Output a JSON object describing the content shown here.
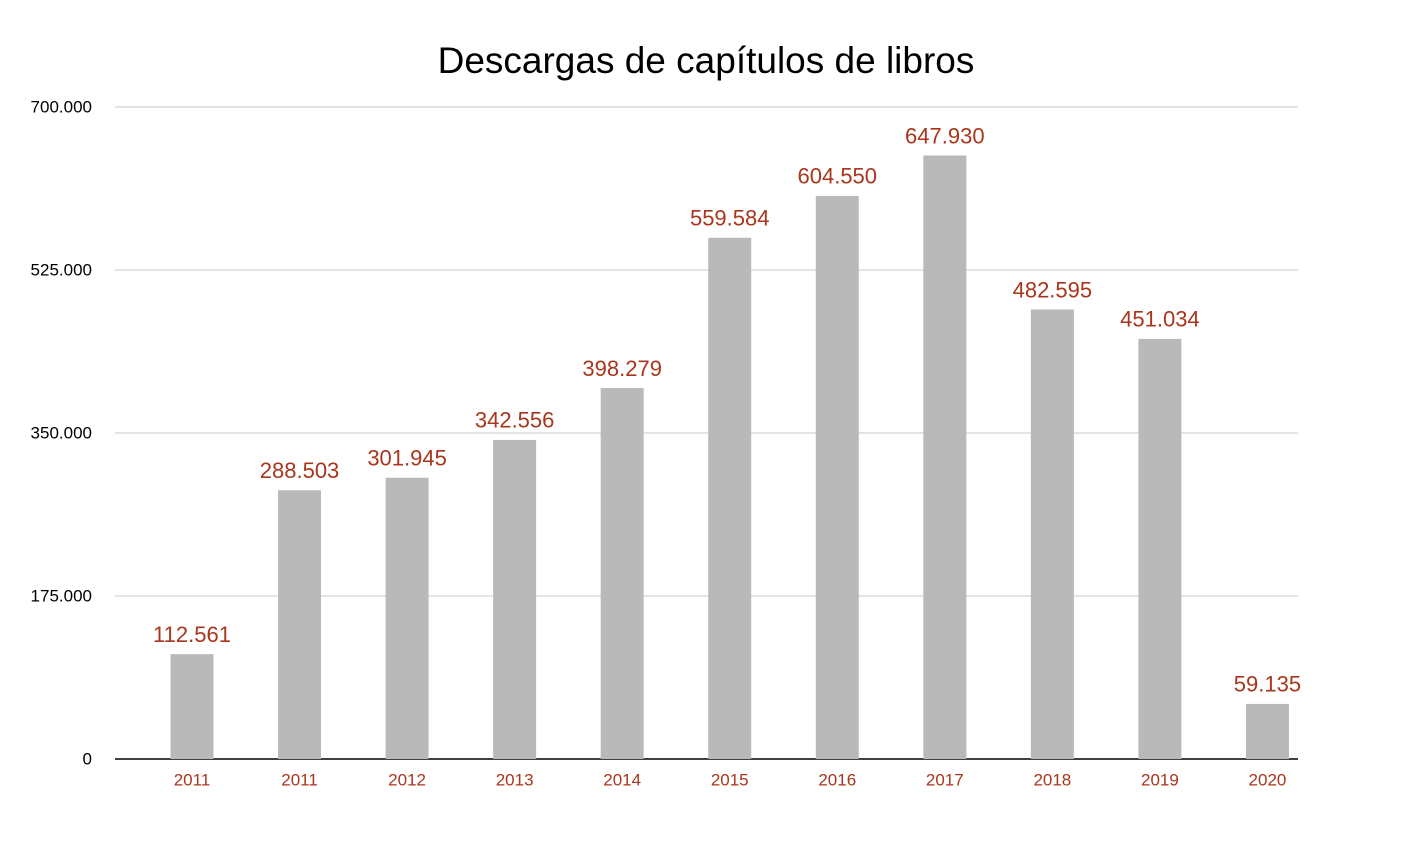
{
  "chart_data": {
    "type": "bar",
    "title": "Descargas de capítulos de libros",
    "categories": [
      "2011",
      "2011",
      "2012",
      "2013",
      "2014",
      "2015",
      "2016",
      "2017",
      "2018",
      "2019",
      "2020"
    ],
    "values": [
      112561,
      288503,
      301945,
      342556,
      398279,
      559584,
      604550,
      647930,
      482595,
      451034,
      59135
    ],
    "value_labels": [
      "112.561",
      "288.503",
      "301.945",
      "342.556",
      "398.279",
      "559.584",
      "604.550",
      "647.930",
      "482.595",
      "451.034",
      "59.135"
    ],
    "color": "#b9b9b9",
    "label_color": "#a8361c",
    "ylim": [
      0,
      700000
    ],
    "yticks": [
      0,
      {
        "value": 175000,
        "label": "175.000"
      },
      {
        "value": 350000,
        "label": "350.000"
      },
      {
        "value": 525000,
        "label": "525.000"
      },
      {
        "value": 700000,
        "label": "700.000"
      }
    ],
    "grid": true
  }
}
